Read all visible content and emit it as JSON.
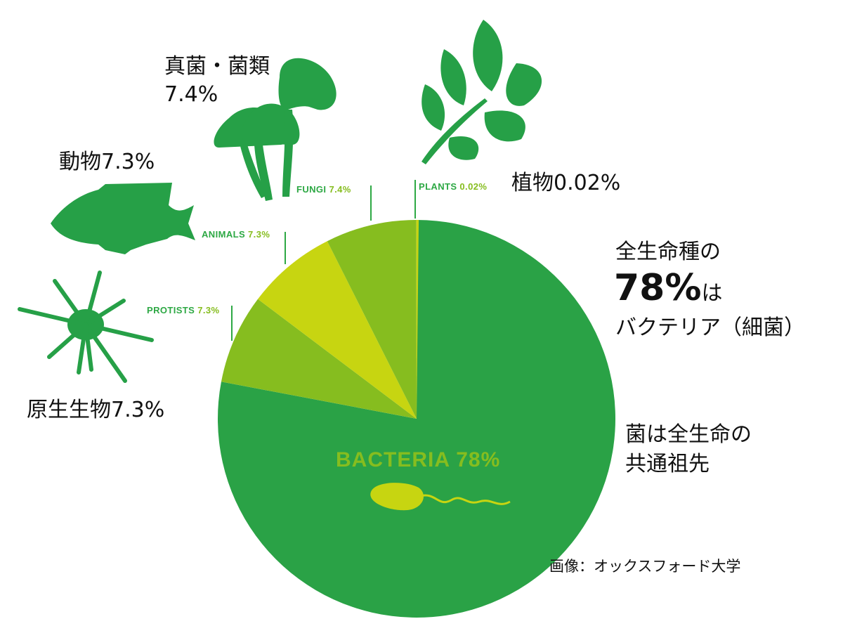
{
  "chart_data": {
    "type": "pie",
    "slices": [
      {
        "name": "BACTERIA",
        "value": 78,
        "pct_label": "78%",
        "color": "#2aa246"
      },
      {
        "name": "PROTISTS",
        "value": 7.3,
        "pct_label": "7.3%",
        "color": "#86bd1f"
      },
      {
        "name": "ANIMALS",
        "value": 7.3,
        "pct_label": "7.3%",
        "color": "#c7d511"
      },
      {
        "name": "FUNGI",
        "value": 7.4,
        "pct_label": "7.4%",
        "color": "#86bd1f"
      },
      {
        "name": "PLANTS",
        "value": 0.02,
        "pct_label": "0.02%",
        "color": "#c7d511"
      }
    ]
  },
  "labels": {
    "fungi_jp": "真菌・菌類",
    "fungi_pct": "7.4%",
    "animals_jp": "動物7.3%",
    "plants_jp": "植物0.02%",
    "protists_jp": "原生生物7.3%",
    "headline_line1": "全生命種の",
    "headline_line2": "78%",
    "headline_line2_suffix": "は",
    "headline_line3": "バクテリア（細菌）",
    "note_line1": "菌は全生命の",
    "note_line2": "共通祖先",
    "credit": "画像：オックスフォード大学"
  },
  "silhouettes": [
    "mushroom-icon",
    "leaf-icon",
    "fish-icon",
    "protist-icon",
    "bacterium-icon"
  ],
  "colors": {
    "bacteria": "#2aa246",
    "mid_green": "#86bd1f",
    "light_green": "#c7d511",
    "silhouette": "#26a047"
  }
}
